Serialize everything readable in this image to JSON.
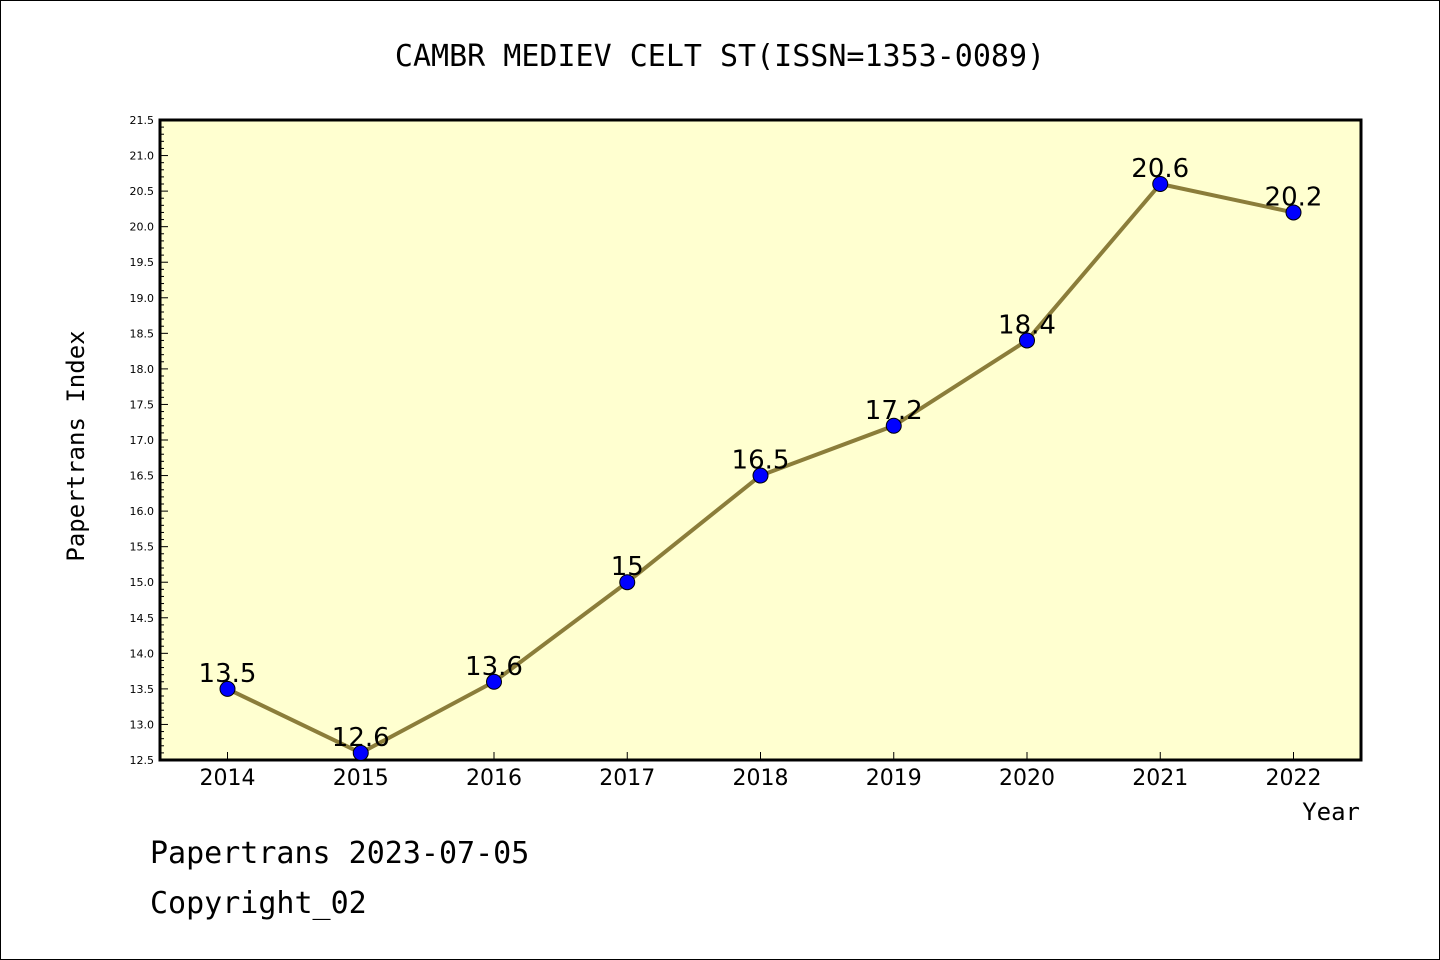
{
  "footer": {
    "line1": "Papertrans 2023-07-05",
    "line2": "Copyright_02"
  },
  "colors": {
    "plot_background": "#ffffd0",
    "line": "#8b7d3a",
    "marker": "#0000ff"
  },
  "chart_data": {
    "type": "line",
    "title": "CAMBR MEDIEV CELT ST(ISSN=1353-0089)",
    "xlabel": "Year",
    "ylabel": "Papertrans Index",
    "categories": [
      "2014",
      "2015",
      "2016",
      "2017",
      "2018",
      "2019",
      "2020",
      "2021",
      "2022"
    ],
    "series": [
      {
        "values": [
          13.5,
          12.6,
          13.6,
          15,
          16.5,
          17.2,
          18.4,
          20.6,
          20.2
        ],
        "labels": [
          "13.5",
          "12.6",
          "13.6",
          "15",
          "16.5",
          "17.2",
          "18.4",
          "20.6",
          "20.2"
        ]
      }
    ],
    "ylim": [
      12.5,
      21.5
    ],
    "yticks": [
      "12.5",
      "13.0",
      "13.5",
      "14.0",
      "14.5",
      "15.0",
      "15.5",
      "16.0",
      "16.5",
      "17.0",
      "17.5",
      "18.0",
      "18.5",
      "19.0",
      "19.5",
      "20.0",
      "20.5",
      "21.0",
      "21.5"
    ],
    "grid": false,
    "legend": "none"
  }
}
